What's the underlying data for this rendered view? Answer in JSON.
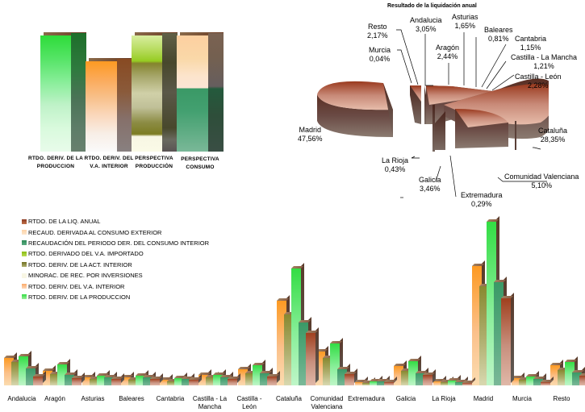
{
  "chart_data": [
    {
      "type": "bar",
      "title": "",
      "categories": [
        "RTDO. DERIV. DE LA PRODUCCION",
        "RTDO. DERIV. DEL V.A. INTERIOR",
        "PERSPECTIVA PRODUCCIÓN",
        "PERSPECTIVA CONSUMO"
      ],
      "series": [
        {
          "name": "RTDO. DERIV. DE LA PRODUCCION",
          "values": [
            100,
            null,
            null,
            null
          ],
          "color": "#33dd44"
        },
        {
          "name": "RTDO. DERIV. DEL V.A. INTERIOR",
          "values": [
            null,
            78,
            null,
            null
          ],
          "color": "#ff9922"
        },
        {
          "name": "RTDO. DERIVADO DEL V.A. IMPORTADO",
          "values": [
            null,
            null,
            22,
            null
          ],
          "color": "#99cc22"
        },
        {
          "name": "RTDO. DERIV. DE LA ACT. INTERIOR",
          "values": [
            null,
            null,
            62,
            null
          ],
          "color": "#888833"
        },
        {
          "name": "MINORAC. DE REC. POR INVERSIONES",
          "values": [
            null,
            null,
            16,
            null
          ],
          "color": "#f8f6e4"
        },
        {
          "name": "RECAUD. DERIVADA AL CONSUMO EXTERIOR",
          "values": [
            null,
            null,
            null,
            46
          ],
          "color": "#fdd4a8"
        },
        {
          "name": "RECAUDACIÓN DEL PERIODO DER. DEL CONSUMO INTERIOR",
          "values": [
            null,
            null,
            null,
            54
          ],
          "color": "#3a9966"
        }
      ],
      "xlabel": "",
      "ylabel": "",
      "grid": false,
      "legend_position": "none"
    },
    {
      "type": "pie",
      "title": "Resultado de la liquidación anual",
      "categories": [
        "Andalucia",
        "Aragón",
        "Asturias",
        "Baleares",
        "Cantabria",
        "Castilla - La Mancha",
        "Castilla - León",
        "Cataluña",
        "Comunidad Valenciana",
        "Extremadura",
        "Galicia",
        "La Rioja",
        "Madrid",
        "Murcia",
        "Resto"
      ],
      "values": [
        3.05,
        2.44,
        1.65,
        0.81,
        1.15,
        1.21,
        2.28,
        28.35,
        5.1,
        0.29,
        3.46,
        0.43,
        47.56,
        0.04,
        2.17
      ],
      "labels": [
        "3,05%",
        "2,44%",
        "1,65%",
        "0,81%",
        "1,15%",
        "1,21%",
        "2,28%",
        "28,35%",
        "5,10%",
        "0,29%",
        "3,46%",
        "0,43%",
        "47,56%",
        "0,04%",
        "2,17%"
      ],
      "exploded": true,
      "color": "#a8442a"
    },
    {
      "type": "bar",
      "title": "",
      "categories": [
        "Andalucia",
        "Aragón",
        "Asturias",
        "Baleares",
        "Cantabria",
        "Castilla - La Mancha",
        "Castilla - León",
        "Cataluña",
        "Comunidad Valenciana",
        "Extremadura",
        "Galicia",
        "La Rioja",
        "Madrid",
        "Murcia",
        "Resto"
      ],
      "series": [
        {
          "name": "RTDO. DERIV. DEL V.A. INTERIOR",
          "color": "#ff9922",
          "values": [
            34,
            18,
            10,
            10,
            7,
            13,
            20,
            105,
            42,
            4,
            24,
            5,
            148,
            9,
            25
          ]
        },
        {
          "name": "RTDO. DERIV. DE LA ACT. INTERIOR",
          "color": "#888833",
          "values": [
            29,
            14,
            8,
            7,
            5,
            10,
            15,
            88,
            34,
            3,
            18,
            4,
            123,
            7,
            19
          ]
        },
        {
          "name": "RTDO. DERIV. DE LA PRODUCCION",
          "color": "#33dd44",
          "values": [
            36,
            26,
            12,
            12,
            9,
            13,
            25,
            145,
            52,
            5,
            30,
            6,
            203,
            11,
            29
          ]
        },
        {
          "name": "RECAUDACIÓN DEL PERIODO DER. DEL CONSUMO INTERIOR",
          "color": "#3a9966",
          "values": [
            21,
            13,
            10,
            10,
            8,
            10,
            15,
            78,
            20,
            5,
            15,
            4,
            128,
            8,
            16
          ]
        },
        {
          "name": "RTDO. DE LA LIQ. ANUAL",
          "color": "#a8442a",
          "values": [
            11,
            9,
            8,
            8,
            7,
            8,
            11,
            65,
            14,
            4,
            13,
            3,
            108,
            4,
            12
          ]
        }
      ],
      "xlabel": "",
      "ylabel": "",
      "grid": false,
      "legend_position": "top-left"
    }
  ],
  "column_chart": {
    "labels": [
      {
        "line1": "RTDO. DERIV. DE LA",
        "line2": "PRODUCCION"
      },
      {
        "line1": "RTDO. DERIV. DEL",
        "line2": "V.A. INTERIOR"
      },
      {
        "line1": "PERSPECTIVA",
        "line2": "PRODUCCIÓN"
      },
      {
        "line1": "PERSPECTIVA",
        "line2": "CONSUMO"
      }
    ]
  },
  "pie": {
    "title": "Resultado de la liquidación anual",
    "labels": [
      {
        "name": "Resto",
        "pct": "2,17%"
      },
      {
        "name": "Andalucia",
        "pct": "3,05%"
      },
      {
        "name": "Asturias",
        "pct": "1,65%"
      },
      {
        "name": "Baleares",
        "pct": "0,81%"
      },
      {
        "name": "Murcia",
        "pct": "0,04%"
      },
      {
        "name": "Aragón",
        "pct": "2,44%"
      },
      {
        "name": "Cantabria",
        "pct": "1,15%"
      },
      {
        "name": "Castilla - La Mancha",
        "pct": "1,21%"
      },
      {
        "name": "Castilla - León",
        "pct": "2,28%"
      },
      {
        "name": "Madrid",
        "pct": "47,56%"
      },
      {
        "name": "Cataluña",
        "pct": "28,35%"
      },
      {
        "name": "La Rioja",
        "pct": "0,43%"
      },
      {
        "name": "Galicia",
        "pct": "3,46%"
      },
      {
        "name": "Comunidad Valenciana",
        "pct": "5,10%"
      },
      {
        "name": "Extremadura",
        "pct": "0,29%"
      }
    ]
  },
  "legend": {
    "items": [
      {
        "label": "RTDO. DE LA LIQ. ANUAL",
        "color": "#a8442a"
      },
      {
        "label": "RECAUD. DERIVADA AL CONSUMO EXTERIOR",
        "color": "#fdd4a8"
      },
      {
        "label": "RECAUDACIÓN DEL PERIODO DER. DEL CONSUMO INTERIOR",
        "color": "#3a9966"
      },
      {
        "label": "RTDO. DERIVADO DEL V.A. IMPORTADO",
        "color": "#99cc22"
      },
      {
        "label": "RTDO. DERIV. DE LA ACT. INTERIOR",
        "color": "#888833"
      },
      {
        "label": "MINORAC. DE REC. POR INVERSIONES",
        "color": "#f8f6e4"
      },
      {
        "label": "RTDO. DERIV. DEL V.A. INTERIOR",
        "color": "#ff9922"
      },
      {
        "label": "RTDO. DERIV. DE LA PRODUCCION",
        "color": "#33dd44"
      }
    ]
  },
  "bar_chart": {
    "categories": [
      {
        "line1": "Andalucia",
        "line2": ""
      },
      {
        "line1": "Aragón",
        "line2": ""
      },
      {
        "line1": "Asturias",
        "line2": ""
      },
      {
        "line1": "Baleares",
        "line2": ""
      },
      {
        "line1": "Cantabria",
        "line2": ""
      },
      {
        "line1": "Castilla - La",
        "line2": "Mancha"
      },
      {
        "line1": "Castilla -",
        "line2": "León"
      },
      {
        "line1": "Cataluña",
        "line2": ""
      },
      {
        "line1": "Comunidad",
        "line2": "Valenciana"
      },
      {
        "line1": "Extremadura",
        "line2": ""
      },
      {
        "line1": "Galicia",
        "line2": ""
      },
      {
        "line1": "La Rioja",
        "line2": ""
      },
      {
        "line1": "Madrid",
        "line2": ""
      },
      {
        "line1": "Murcia",
        "line2": ""
      },
      {
        "line1": "Resto",
        "line2": ""
      }
    ]
  }
}
